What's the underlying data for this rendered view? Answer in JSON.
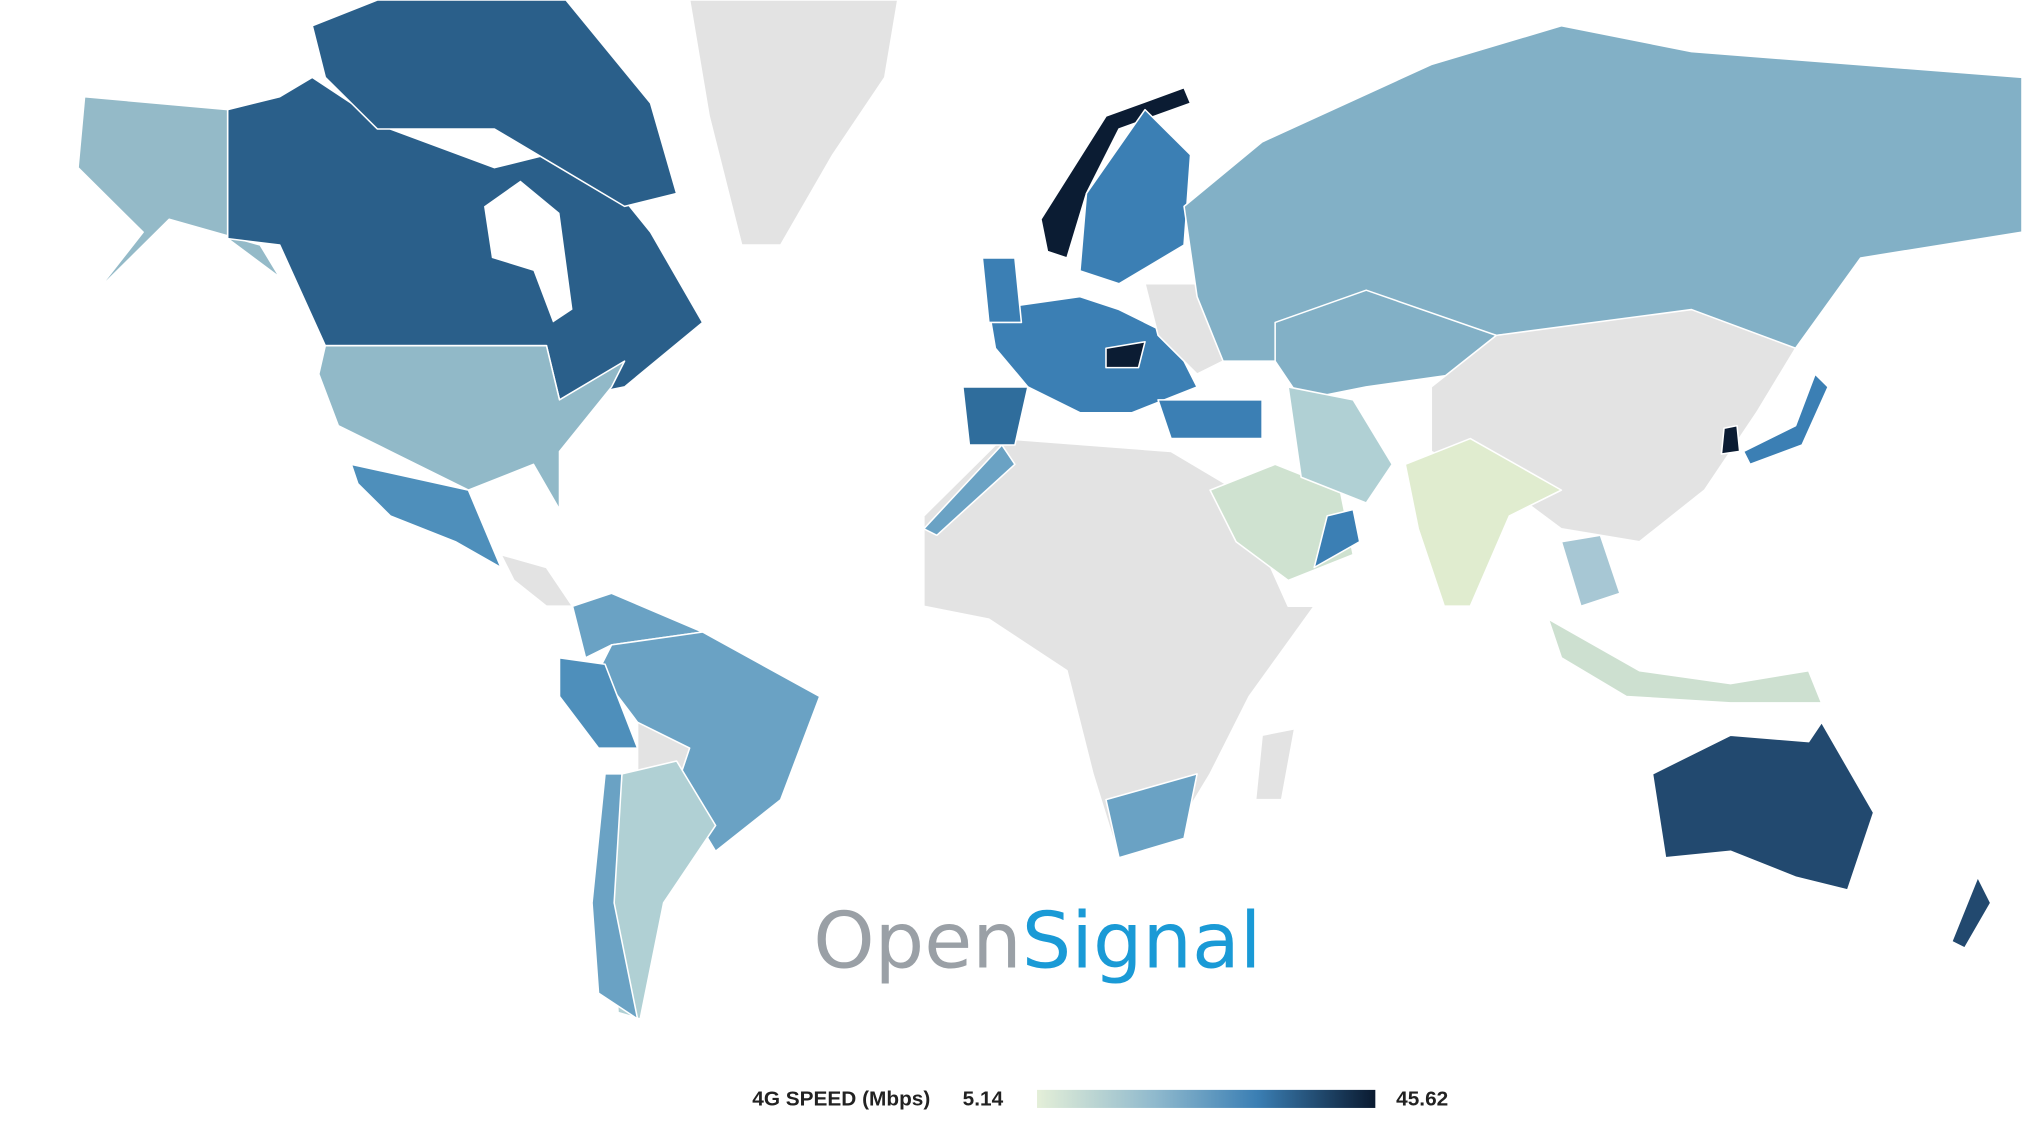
{
  "logo": {
    "part1": "Open",
    "part2": "Signal"
  },
  "legend": {
    "title": "4G SPEED (Mbps)",
    "min": 5.14,
    "max": 45.62
  }
}
